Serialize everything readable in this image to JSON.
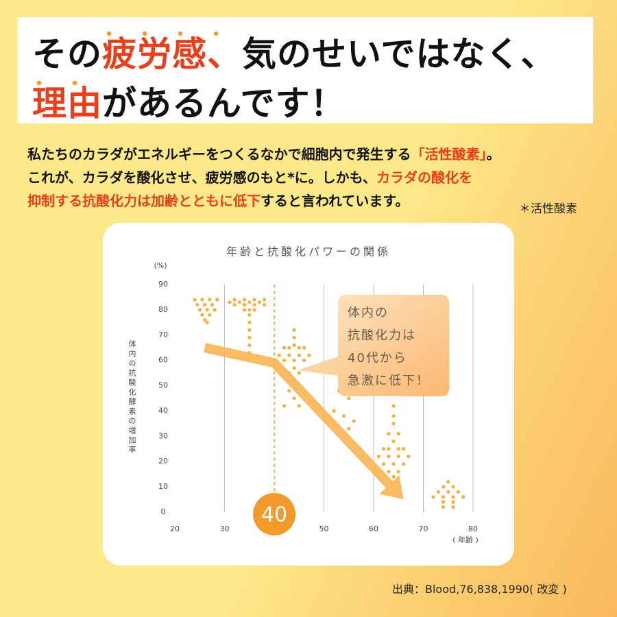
{
  "headline": {
    "lines": [
      [
        {
          "text": "その",
          "highlight": false
        },
        {
          "text": "疲労感、",
          "highlight": true
        },
        {
          "text": "気のせいではなく、",
          "highlight": false
        }
      ],
      [
        {
          "text": "理由",
          "highlight": true
        },
        {
          "text": "があるんです！",
          "highlight": false
        }
      ]
    ]
  },
  "body": {
    "lines": [
      [
        {
          "text": "私たちのカラダがエネルギーをつくるなかで細胞内で発生する",
          "highlight": false
        },
        {
          "text": "「活性酸素」",
          "highlight": true
        },
        {
          "text": "。",
          "highlight": false
        }
      ],
      [
        {
          "text": "これが、カラダを酸化させ、疲労感のもと*に。しかも、",
          "highlight": false
        },
        {
          "text": "カラダの酸化を",
          "highlight": true
        }
      ],
      [
        {
          "text": "抑制する",
          "highlight": true
        },
        {
          "text": "抗酸化力は加齢とともに低下",
          "highlight": true
        },
        {
          "text": "すると言われています。",
          "highlight": false
        }
      ]
    ],
    "footnote": "＊活性酸素"
  },
  "chart_data": {
    "type": "scatter",
    "title": "年齢と抗酸化パワーの関係",
    "y_unit": "(%)",
    "y_label": "体内の抗酸化酵素の増加率",
    "x_unit": "( 年齢 )",
    "xlim": [
      20,
      80
    ],
    "xticks": [
      20,
      30,
      40,
      50,
      60,
      70,
      80
    ],
    "ylim": [
      0,
      90
    ],
    "yticks": [
      0,
      10,
      20,
      30,
      40,
      50,
      60,
      70,
      80,
      90
    ],
    "grid": true,
    "reference_line": {
      "x": 40,
      "color": "#f39a2b",
      "style": "dashed"
    },
    "series": [
      {
        "color": "#f5b042",
        "x": [
          24,
          25.5,
          27,
          28.5,
          24.5,
          26,
          27.5,
          25,
          26.5,
          28,
          25.5,
          27,
          26,
          26.5,
          31,
          32,
          33,
          34,
          35,
          36,
          37,
          38,
          32,
          34,
          36,
          38,
          34,
          36,
          35,
          35,
          35,
          35,
          35,
          35,
          35,
          44,
          44,
          44,
          42,
          43,
          45,
          46,
          41,
          43,
          45,
          47,
          42,
          44,
          46,
          44,
          43,
          45,
          44,
          43,
          44,
          42,
          45,
          53,
          55,
          52,
          54,
          56,
          55,
          64,
          64,
          64,
          63,
          65,
          64,
          62,
          63,
          65,
          66,
          61,
          63,
          65,
          67,
          62,
          64,
          66,
          63,
          65,
          64,
          75,
          74,
          76,
          73,
          75,
          77,
          72,
          74,
          76,
          78,
          74,
          76,
          74,
          76
        ],
        "values": [
          84,
          84,
          84,
          84,
          82,
          82,
          82,
          80,
          80,
          80,
          78,
          78,
          76,
          75,
          83,
          84,
          83,
          84,
          83,
          84,
          83,
          84,
          82,
          82,
          82,
          82,
          80,
          80,
          78,
          75,
          72,
          69,
          66,
          63,
          80,
          72,
          69,
          66,
          65,
          65,
          65,
          65,
          62,
          62,
          62,
          62,
          60,
          60,
          60,
          57,
          55,
          55,
          52,
          48,
          45,
          42,
          42,
          48,
          45,
          40,
          38,
          36,
          33,
          42,
          38,
          35,
          31,
          31,
          28,
          25,
          25,
          25,
          25,
          22,
          22,
          22,
          22,
          19,
          19,
          19,
          16,
          16,
          14,
          12,
          10,
          10,
          8,
          8,
          8,
          6,
          6,
          6,
          6,
          4,
          4,
          2,
          2
        ]
      }
    ],
    "trend": {
      "color": "#f8b553",
      "x": [
        26,
        40,
        66
      ],
      "values": [
        65,
        59,
        5
      ]
    },
    "callout": [
      "体内の",
      "抗酸化力は",
      "40代から",
      "急激に低下！"
    ]
  },
  "source": "出典：Blood,76,838,1990( 改変 )"
}
